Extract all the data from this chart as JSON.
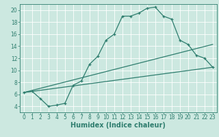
{
  "title": "",
  "xlabel": "Humidex (Indice chaleur)",
  "ylabel": "",
  "bg_color": "#cce8e0",
  "grid_color": "#ffffff",
  "line_color": "#2e7d6e",
  "xlim": [
    -0.5,
    23.5
  ],
  "ylim": [
    3.0,
    21.0
  ],
  "xticks": [
    0,
    1,
    2,
    3,
    4,
    5,
    6,
    7,
    8,
    9,
    10,
    11,
    12,
    13,
    14,
    15,
    16,
    17,
    18,
    19,
    20,
    21,
    22,
    23
  ],
  "yticks": [
    4,
    6,
    8,
    10,
    12,
    14,
    16,
    18,
    20
  ],
  "line1_x": [
    0,
    1,
    2,
    3,
    4,
    5,
    6,
    7,
    8,
    9,
    10,
    11,
    12,
    13,
    14,
    15,
    16,
    17,
    18,
    19,
    20,
    21,
    22,
    23
  ],
  "line1_y": [
    6.3,
    6.5,
    5.3,
    4.0,
    4.2,
    4.5,
    7.5,
    8.2,
    11.0,
    12.3,
    15.0,
    16.0,
    19.0,
    19.0,
    19.5,
    20.3,
    20.5,
    19.0,
    18.5,
    15.0,
    14.3,
    12.5,
    12.0,
    10.5
  ],
  "line2_x": [
    0,
    23
  ],
  "line2_y": [
    6.3,
    10.5
  ],
  "line3_x": [
    0,
    23
  ],
  "line3_y": [
    6.3,
    14.3
  ],
  "xlabel_fontsize": 7,
  "tick_fontsize": 5.5
}
